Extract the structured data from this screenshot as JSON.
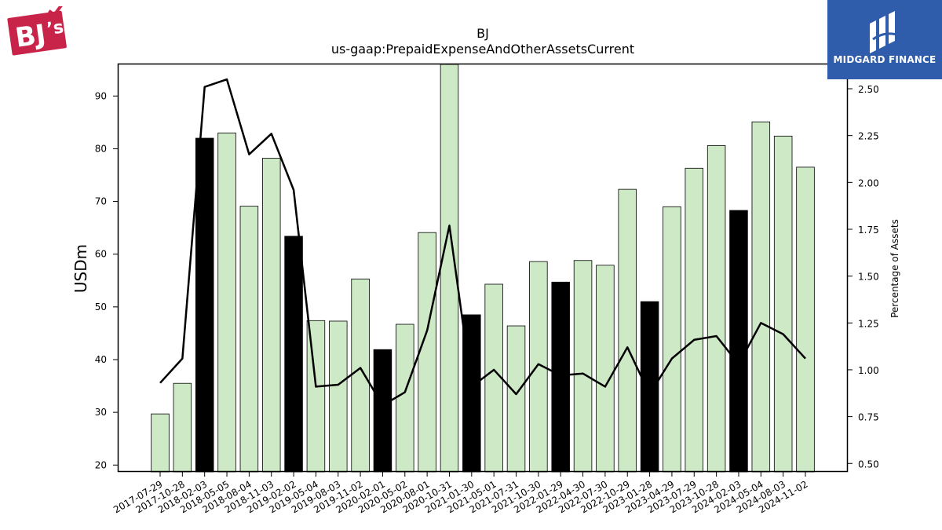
{
  "logos": {
    "left_text": "BJ's",
    "right_text": "MIDGARD FINANCE"
  },
  "colors": {
    "bar_default": "#cde9c6",
    "bar_highlight": "#000000",
    "line": "#000000",
    "logo_left": "#c8244a",
    "logo_right_bg": "#2f5cab"
  },
  "chart_data": {
    "type": "bar",
    "title": "BJ",
    "subtitle": "us-gaap:PrepaidExpenseAndOtherAssetsCurrent",
    "ylabel": "USDm",
    "y2label": "Percentage of Assets",
    "ylim": [
      18.7,
      96.0
    ],
    "y2lim": [
      0.455,
      2.63
    ],
    "yticks": [
      20,
      30,
      40,
      50,
      60,
      70,
      80,
      90
    ],
    "y2ticks": [
      "0.50",
      "0.75",
      "1.00",
      "1.25",
      "1.50",
      "1.75",
      "2.00",
      "2.25",
      "2.50"
    ],
    "categories": [
      "2017-07-29",
      "2017-10-28",
      "2018-02-03",
      "2018-05-05",
      "2018-08-04",
      "2018-11-03",
      "2019-02-02",
      "2019-05-04",
      "2019-08-03",
      "2019-11-02",
      "2020-02-01",
      "2020-05-02",
      "2020-08-01",
      "2020-10-31",
      "2021-01-30",
      "2021-05-01",
      "2021-07-31",
      "2021-10-30",
      "2022-01-29",
      "2022-04-30",
      "2022-07-30",
      "2022-10-29",
      "2023-01-28",
      "2023-04-29",
      "2023-07-29",
      "2023-10-28",
      "2024-02-03",
      "2024-05-04",
      "2024-08-03",
      "2024-11-02"
    ],
    "series": [
      {
        "name": "",
        "kind": "bar",
        "values": [
          29.7,
          35.5,
          82.0,
          83.0,
          69.1,
          78.2,
          63.4,
          47.4,
          47.3,
          55.3,
          41.9,
          46.7,
          64.1,
          96.0,
          48.5,
          54.3,
          46.4,
          58.6,
          54.7,
          58.8,
          57.9,
          72.3,
          51.0,
          69.0,
          76.3,
          80.6,
          68.3,
          85.1,
          82.4,
          76.5
        ],
        "highlight": [
          false,
          false,
          true,
          false,
          false,
          false,
          true,
          false,
          false,
          false,
          true,
          false,
          false,
          false,
          true,
          false,
          false,
          false,
          true,
          false,
          false,
          false,
          true,
          false,
          false,
          false,
          true,
          false,
          false,
          false
        ]
      },
      {
        "name": "",
        "kind": "line",
        "axis": "right",
        "values": [
          0.93,
          1.06,
          2.51,
          2.55,
          2.15,
          2.26,
          1.96,
          0.91,
          0.92,
          1.01,
          0.81,
          0.88,
          1.21,
          1.77,
          0.91,
          1.0,
          0.87,
          1.03,
          0.97,
          0.98,
          0.91,
          1.12,
          0.87,
          1.06,
          1.16,
          1.18,
          1.03,
          1.25,
          1.19,
          1.06
        ]
      }
    ]
  }
}
